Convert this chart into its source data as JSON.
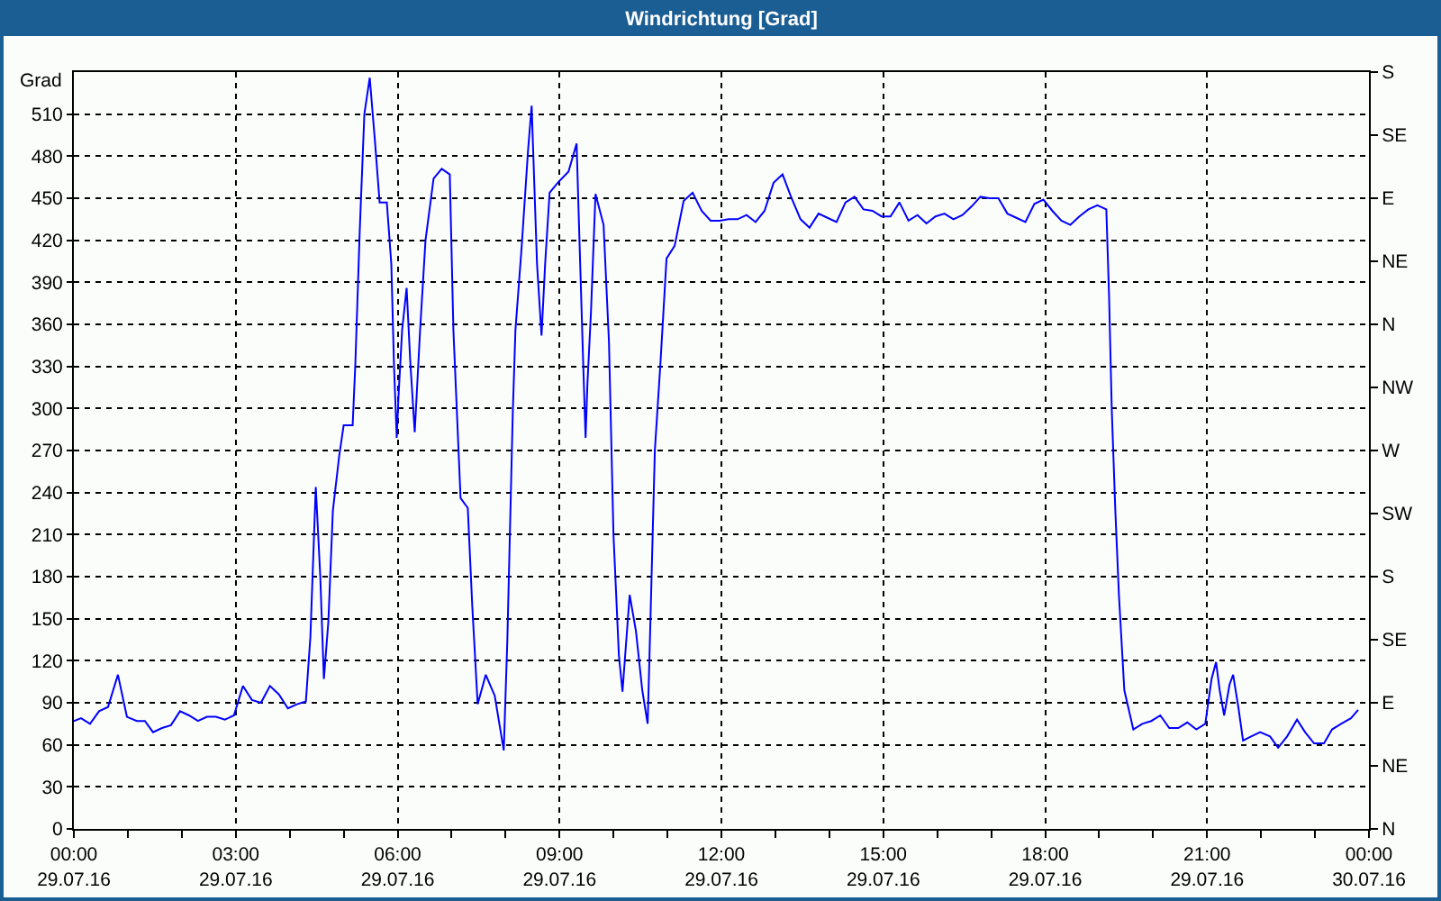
{
  "chart_data": {
    "type": "line",
    "title": "Windrichtung [Grad]",
    "ylabel": "Grad",
    "xlim": [
      "--07-29T00:00",
      "--07-30T00:00"
    ],
    "xticks": [
      {
        "value": "--07-29T00:00",
        "label": "00:00\n29.07.16"
      },
      {
        "value": "--07-29T01:00",
        "label": null
      },
      {
        "value": "--07-29T02:00",
        "label": null
      },
      {
        "value": "--07-29T03:00",
        "label": "03:00\n29.07.16"
      },
      {
        "value": "--07-29T04:00",
        "label": null
      },
      {
        "value": "--07-29T05:00",
        "label": null
      },
      {
        "value": "--07-29T06:00",
        "label": "06:00\n29.07.16"
      },
      {
        "value": "--07-29T07:00",
        "label": null
      },
      {
        "value": "--07-29T08:00",
        "label": null
      },
      {
        "value": "--07-29T09:00",
        "label": "09:00\n29.07.16"
      },
      {
        "value": "--07-29T10:00",
        "label": null
      },
      {
        "value": "--07-29T11:00",
        "label": null
      },
      {
        "value": "--07-29T12:00",
        "label": "12:00\n29.07.16"
      },
      {
        "value": "--07-29T13:00",
        "label": null
      },
      {
        "value": "--07-29T14:00",
        "label": null
      },
      {
        "value": "--07-29T15:00",
        "label": "15:00\n29.07.16"
      },
      {
        "value": "--07-29T16:00",
        "label": null
      },
      {
        "value": "--07-29T17:00",
        "label": null
      },
      {
        "value": "--07-29T18:00",
        "label": "18:00\n29.07.16"
      },
      {
        "value": "--07-29T19:00",
        "label": null
      },
      {
        "value": "--07-29T20:00",
        "label": null
      },
      {
        "value": "--07-29T21:00",
        "label": "21:00\n29.07.16"
      },
      {
        "value": "--07-29T22:00",
        "label": null
      },
      {
        "value": "--07-29T23:00",
        "label": null
      },
      {
        "value": "--07-30T00:00",
        "label": "00:00\n30.07.16"
      }
    ],
    "ylim": [
      0,
      540
    ],
    "yticks": [
      0,
      30,
      60,
      90,
      120,
      150,
      180,
      210,
      240,
      270,
      300,
      330,
      360,
      390,
      420,
      450,
      480,
      510
    ],
    "y2_categories": [
      "S",
      "SE",
      "E",
      "NE",
      "N",
      "NW",
      "W",
      "SW",
      "S",
      "SE",
      "E",
      "NE",
      "N"
    ],
    "grid": true,
    "series": [
      {
        "color": "#0000ff",
        "x": [
          "--07-29T00:00",
          "--07-29T00:08",
          "--07-29T00:18",
          "--07-29T00:28",
          "--07-29T00:38",
          "--07-29T00:49",
          "--07-29T00:59",
          "--07-29T01:10",
          "--07-29T01:19",
          "--07-29T01:28",
          "--07-29T01:38",
          "--07-29T01:48",
          "--07-29T01:58",
          "--07-29T02:08",
          "--07-29T02:18",
          "--07-29T02:28",
          "--07-29T02:38",
          "--07-29T02:48",
          "--07-29T02:58",
          "--07-29T03:08",
          "--07-29T03:18",
          "--07-29T03:28",
          "--07-29T03:38",
          "--07-29T03:48",
          "--07-29T03:58",
          "--07-29T04:08",
          "--07-29T04:18",
          "--07-29T04:23",
          "--07-29T04:29",
          "--07-29T04:34",
          "--07-29T04:38",
          "--07-29T04:43",
          "--07-29T04:48",
          "--07-29T04:55",
          "--07-29T05:00",
          "--07-29T05:10",
          "--07-29T05:13",
          "--07-29T05:18",
          "--07-29T05:23",
          "--07-29T05:29",
          "--07-29T05:35",
          "--07-29T05:40",
          "--07-29T05:48",
          "--07-29T05:53",
          "--07-29T05:56",
          "--07-29T05:59",
          "--07-29T06:01",
          "--07-29T06:05",
          "--07-29T06:10",
          "--07-29T06:14",
          "--07-29T06:19",
          "--07-29T06:25",
          "--07-29T06:31",
          "--07-29T06:40",
          "--07-29T06:49",
          "--07-29T06:58",
          "--07-29T07:02",
          "--07-29T07:10",
          "--07-29T07:18",
          "--07-29T07:23",
          "--07-29T07:29",
          "--07-29T07:38",
          "--07-29T07:48",
          "--07-29T07:58",
          "--07-29T08:02",
          "--07-29T08:08",
          "--07-29T08:11",
          "--07-29T08:18",
          "--07-29T08:25",
          "--07-29T08:29",
          "--07-29T08:35",
          "--07-29T08:40",
          "--07-29T08:44",
          "--07-29T08:49",
          "--07-29T08:58",
          "--07-29T09:10",
          "--07-29T09:19",
          "--07-29T09:22",
          "--07-29T09:26",
          "--07-29T09:29",
          "--07-29T09:31",
          "--07-29T09:35",
          "--07-29T09:40",
          "--07-29T09:49",
          "--07-29T09:55",
          "--07-29T10:00",
          "--07-29T10:06",
          "--07-29T10:10",
          "--07-29T10:18",
          "--07-29T10:25",
          "--07-29T10:32",
          "--07-29T10:38",
          "--07-29T10:41",
          "--07-29T10:46",
          "--07-29T10:52",
          "--07-29T10:59",
          "--07-29T11:08",
          "--07-29T11:18",
          "--07-29T11:28",
          "--07-29T11:38",
          "--07-29T11:48",
          "--07-29T11:58",
          "--07-29T12:08",
          "--07-29T12:18",
          "--07-29T12:28",
          "--07-29T12:38",
          "--07-29T12:48",
          "--07-29T12:58",
          "--07-29T13:08",
          "--07-29T13:18",
          "--07-29T13:28",
          "--07-29T13:38",
          "--07-29T13:48",
          "--07-29T13:58",
          "--07-29T14:08",
          "--07-29T14:18",
          "--07-29T14:28",
          "--07-29T14:38",
          "--07-29T14:48",
          "--07-29T14:58",
          "--07-29T15:08",
          "--07-29T15:18",
          "--07-29T15:28",
          "--07-29T15:38",
          "--07-29T15:48",
          "--07-29T15:58",
          "--07-29T16:08",
          "--07-29T16:18",
          "--07-29T16:28",
          "--07-29T16:38",
          "--07-29T16:48",
          "--07-29T16:58",
          "--07-29T17:08",
          "--07-29T17:18",
          "--07-29T17:28",
          "--07-29T17:38",
          "--07-29T17:48",
          "--07-29T17:58",
          "--07-29T18:08",
          "--07-29T18:18",
          "--07-29T18:28",
          "--07-29T18:38",
          "--07-29T18:48",
          "--07-29T18:58",
          "--07-29T19:08",
          "--07-29T19:11",
          "--07-29T19:14",
          "--07-29T19:18",
          "--07-29T19:22",
          "--07-29T19:28",
          "--07-29T19:38",
          "--07-29T19:48",
          "--07-29T19:58",
          "--07-29T20:08",
          "--07-29T20:18",
          "--07-29T20:28",
          "--07-29T20:38",
          "--07-29T20:48",
          "--07-29T20:58",
          "--07-29T21:05",
          "--07-29T21:10",
          "--07-29T21:14",
          "--07-29T21:19",
          "--07-29T21:25",
          "--07-29T21:29",
          "--07-29T21:35",
          "--07-29T21:40",
          "--07-29T21:49",
          "--07-29T21:59",
          "--07-29T22:10",
          "--07-29T22:19",
          "--07-29T22:29",
          "--07-29T22:40",
          "--07-29T22:49",
          "--07-29T22:59",
          "--07-29T23:10",
          "--07-29T23:19",
          "--07-29T23:29",
          "--07-29T23:40",
          "--07-29T23:48"
        ],
        "values": [
          77,
          79,
          75,
          84,
          87,
          110,
          80,
          77,
          77,
          69,
          72,
          74,
          84,
          81,
          77,
          80,
          80,
          78,
          81,
          102,
          92,
          90,
          102,
          96,
          86,
          89,
          91,
          137,
          244,
          180,
          107,
          148,
          227,
          266,
          288,
          288,
          332,
          429,
          510,
          536,
          489,
          447,
          447,
          403,
          330,
          279,
          309,
          356,
          386,
          334,
          283,
          356,
          420,
          464,
          471,
          467,
          356,
          236,
          229,
          159,
          89,
          110,
          95,
          56,
          135,
          296,
          356,
          416,
          484,
          516,
          403,
          352,
          403,
          454,
          461,
          469,
          489,
          424,
          339,
          279,
          317,
          369,
          453,
          431,
          347,
          210,
          124,
          98,
          167,
          141,
          99,
          75,
          146,
          270,
          330,
          407,
          416,
          448,
          454,
          441,
          434,
          434,
          435,
          435,
          438,
          433,
          441,
          461,
          467,
          450,
          435,
          429,
          439,
          436,
          433,
          447,
          451,
          442,
          441,
          437,
          437,
          447,
          434,
          438,
          432,
          437,
          439,
          435,
          438,
          444,
          451,
          450,
          450,
          439,
          436,
          433,
          446,
          449,
          441,
          434,
          431,
          437,
          442,
          445,
          442,
          381,
          300,
          227,
          167,
          99,
          71,
          75,
          77,
          81,
          72,
          72,
          76,
          71,
          75,
          107,
          119,
          99,
          81,
          103,
          110,
          86,
          63,
          66,
          69,
          66,
          58,
          66,
          78,
          69,
          61,
          61,
          71,
          75,
          79,
          85
        ]
      }
    ]
  }
}
